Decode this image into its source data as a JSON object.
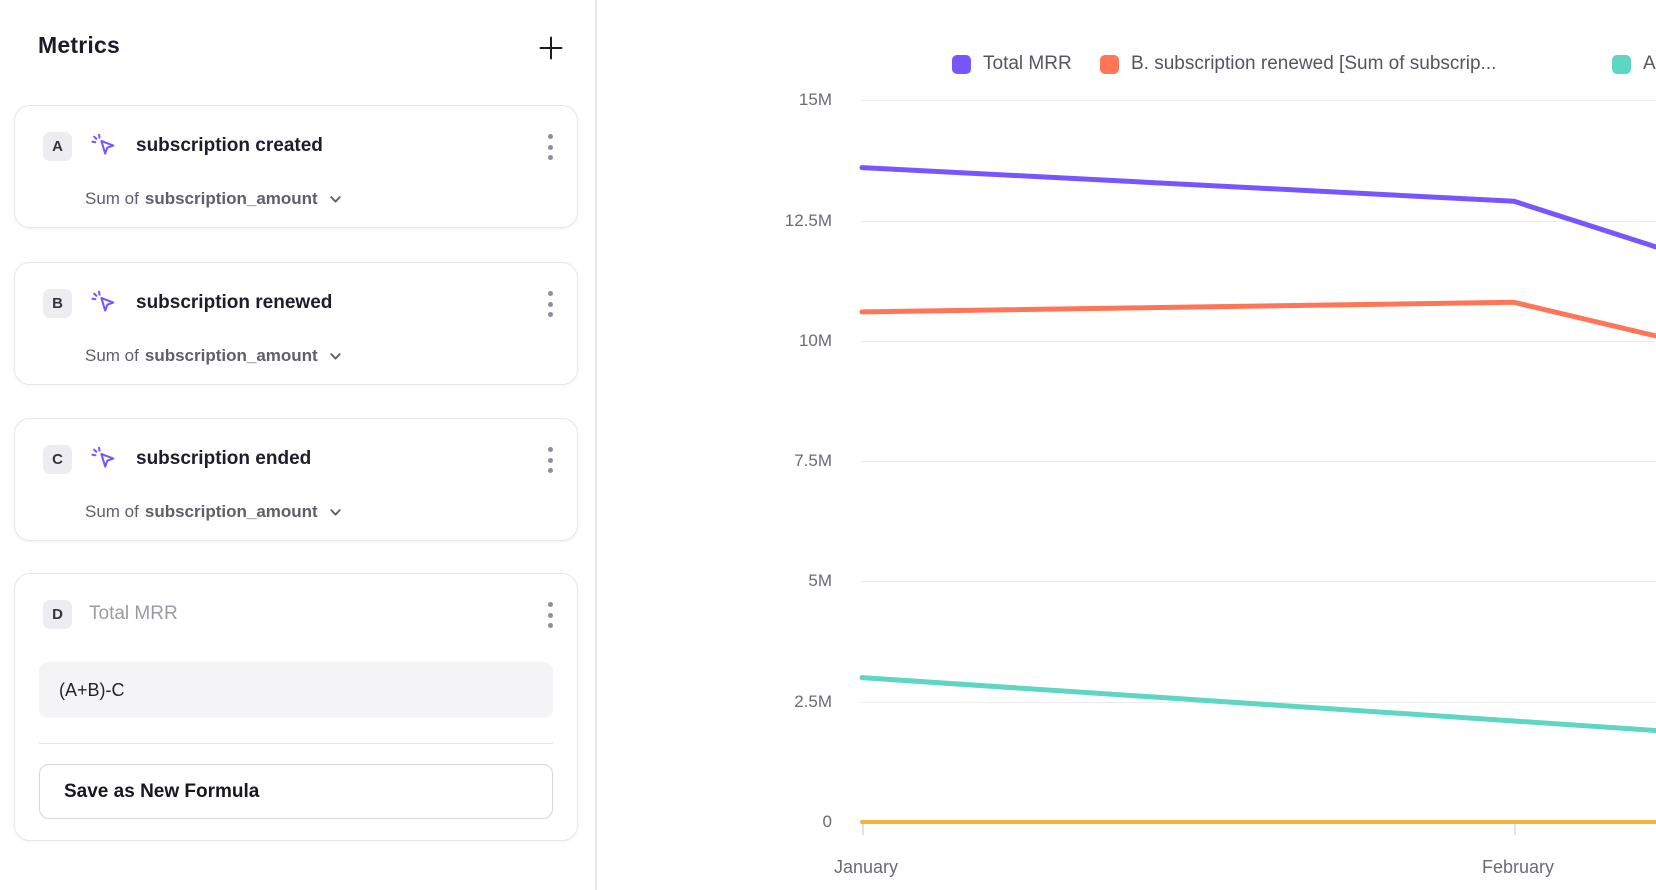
{
  "panel": {
    "title": "Metrics",
    "add_button": {
      "icon": "plus"
    },
    "metrics": [
      {
        "letter": "A",
        "icon": "event-cursor",
        "name": "subscription created",
        "aggregation": "Sum of",
        "property": "subscription_amount"
      },
      {
        "letter": "B",
        "icon": "event-cursor",
        "name": "subscription renewed",
        "aggregation": "Sum of",
        "property": "subscription_amount"
      },
      {
        "letter": "C",
        "icon": "event-cursor",
        "name": "subscription ended",
        "aggregation": "Sum of",
        "property": "subscription_amount"
      }
    ],
    "formula_card": {
      "letter": "D",
      "name": "Total MRR",
      "expression": "(A+B)-C",
      "save_button_label": "Save as New Formula"
    }
  },
  "chart_data": {
    "type": "line",
    "title": "",
    "xlabel": "",
    "ylabel": "",
    "x_labels": [
      "January",
      "February"
    ],
    "ylim": [
      0,
      15000000
    ],
    "grid": "horizontal",
    "legend_position": "top",
    "yticks": [
      {
        "label": "15M",
        "value": 15000000
      },
      {
        "label": "12.5M",
        "value": 12500000
      },
      {
        "label": "10M",
        "value": 10000000
      },
      {
        "label": "7.5M",
        "value": 7500000
      },
      {
        "label": "5M",
        "value": 5000000
      },
      {
        "label": "2.5M",
        "value": 2500000
      },
      {
        "label": "0",
        "value": 0
      }
    ],
    "series": [
      {
        "legend": "Total MRR",
        "legend_visible": true,
        "color": "#7856FF",
        "values": [
          13600000,
          12900000
        ],
        "value_at_right_clip": 11950000
      },
      {
        "legend": "B. subscription renewed [Sum of subscrip...",
        "legend_visible": true,
        "color": "#FF7557",
        "values": [
          10600000,
          10800000
        ],
        "value_at_right_clip": 10100000
      },
      {
        "legend": "A",
        "legend_visible": true,
        "legend_clipped": true,
        "color": "#5ED6C4",
        "values": [
          3000000,
          2100000
        ],
        "value_at_right_clip": 1900000
      },
      {
        "legend": "",
        "legend_visible": false,
        "color": "#F2B33D",
        "values": [
          0,
          0
        ],
        "value_at_right_clip": 0
      }
    ]
  }
}
